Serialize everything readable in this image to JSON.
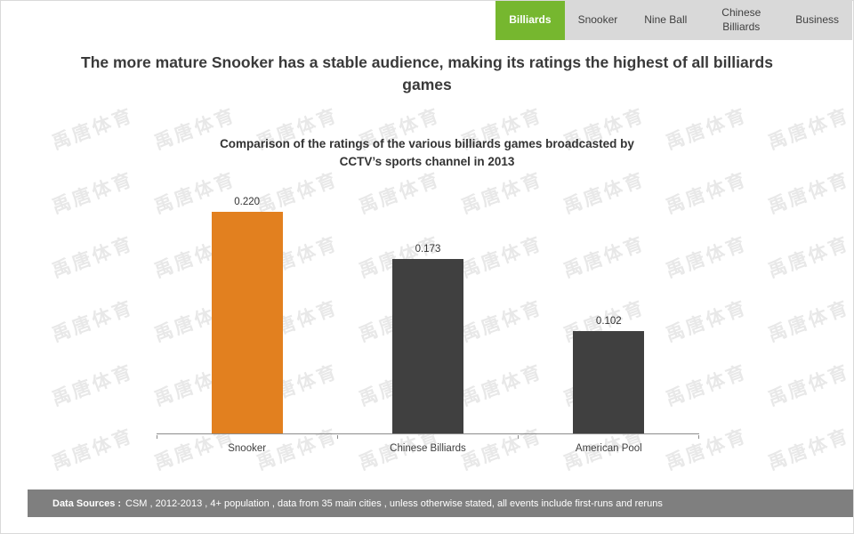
{
  "nav": {
    "tabs": [
      {
        "label": "Billiards",
        "active": true
      },
      {
        "label": "Snooker",
        "active": false
      },
      {
        "label": "Nine Ball",
        "active": false
      },
      {
        "label": "Chinese Billiards",
        "active": false
      },
      {
        "label": "Business",
        "active": false
      }
    ],
    "active_color": "#76b72f",
    "inactive_color": "#d9d9d9"
  },
  "headline": "The more mature Snooker has a stable audience, making its ratings the highest of all billiards games",
  "chart_data": {
    "type": "bar",
    "title": "Comparison of the ratings of the various billiards games broadcasted by CCTV’s sports channel in 2013",
    "categories": [
      "Snooker",
      "Chinese Billiards",
      "American Pool"
    ],
    "values": [
      0.22,
      0.173,
      0.102
    ],
    "value_labels": [
      "0.220",
      "0.173",
      "0.102"
    ],
    "bar_colors": [
      "#e2801f",
      "#404040",
      "#404040"
    ],
    "ylim": [
      0,
      0.25
    ],
    "xlabel": "",
    "ylabel": "",
    "grid": false,
    "legend": "none"
  },
  "watermark": "禹唐体育",
  "footer": {
    "label": "Data Sources :",
    "text": "CSM , 2012-2013 , 4+ population , data from 35 main cities , unless otherwise stated, all events include first-runs and reruns"
  }
}
